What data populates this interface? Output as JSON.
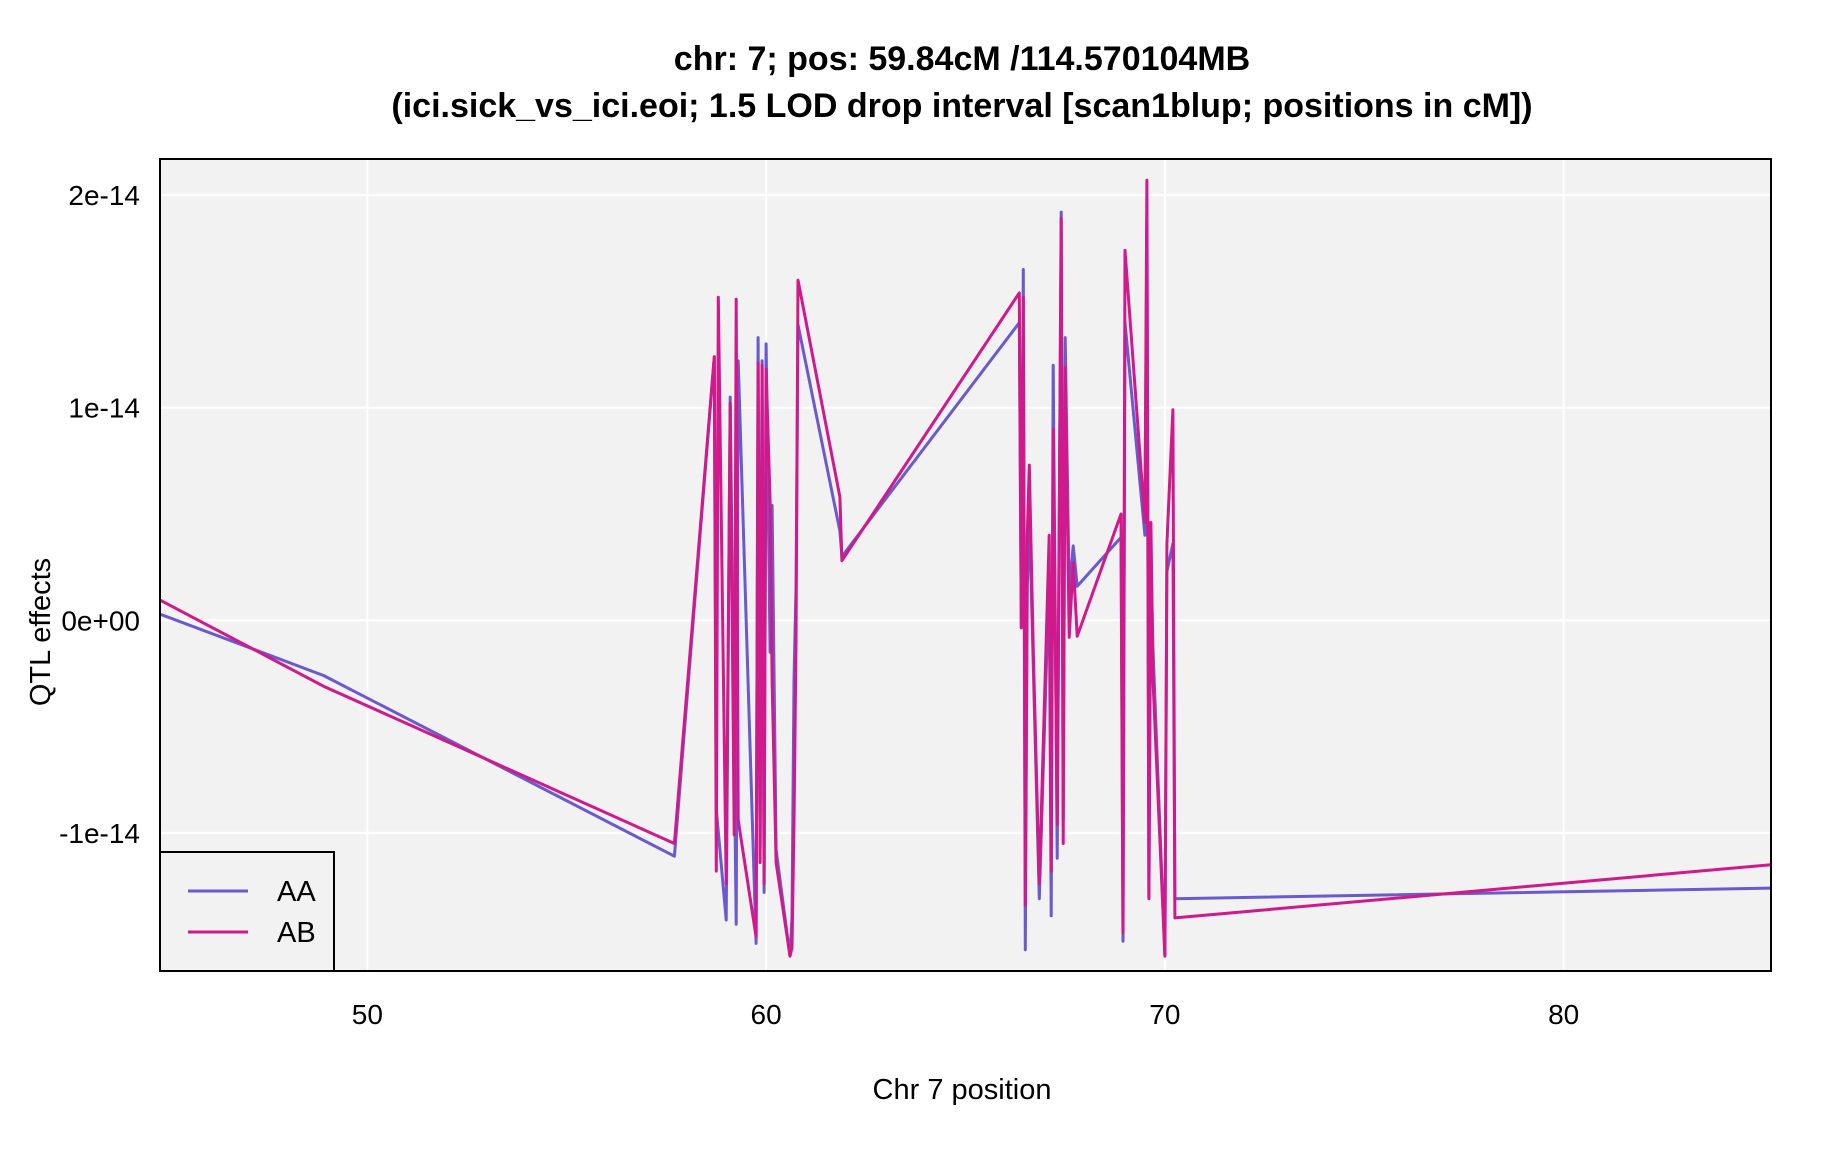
{
  "chart_data": {
    "type": "line",
    "title": "chr: 7; pos: 59.84cM /114.570104MB",
    "subtitle": "(ici.sick_vs_ici.eoi; 1.5 LOD drop interval [scan1blup; positions in cM])",
    "xlabel": "Chr 7 position",
    "ylabel": "QTL effects",
    "xlim": [
      44.8,
      85.2
    ],
    "ylim": [
      -1.65e-14,
      2.17e-14
    ],
    "x_ticks": [
      50,
      60,
      70,
      80
    ],
    "x_tick_labels": [
      "50",
      "60",
      "70",
      "80"
    ],
    "y_ticks": [
      -1e-14,
      0,
      1e-14,
      2e-14
    ],
    "y_tick_labels": [
      "-1e-14",
      "0e+00",
      "1e-14",
      "2e-14"
    ],
    "grid": true,
    "legend_position": "bottom-left",
    "background": "#f2f2f2",
    "series": [
      {
        "name": "AA",
        "color": "#6a5acd",
        "x": [
          44.8,
          48.9,
          57.7,
          58.7,
          58.75,
          59.0,
          59.1,
          59.25,
          59.3,
          59.75,
          59.8,
          59.85,
          59.9,
          59.95,
          60.0,
          60.1,
          60.15,
          60.25,
          60.6,
          60.65,
          60.7,
          60.75,
          60.8,
          61.85,
          61.9,
          66.35,
          66.4,
          66.45,
          66.5,
          66.55,
          66.6,
          66.7,
          66.85,
          67.1,
          67.15,
          67.2,
          67.3,
          67.4,
          67.45,
          67.5,
          67.6,
          67.7,
          67.8,
          68.9,
          68.95,
          69.0,
          69.5,
          69.55,
          69.6,
          69.65,
          69.7,
          70.0,
          70.05,
          70.2,
          70.25,
          85.2
        ],
        "values": [
          2.9e-16,
          -2.6e-15,
          -1.11e-14,
          1.24e-14,
          -8.9e-15,
          -1.41e-14,
          1.05e-14,
          -1.43e-14,
          1.22e-14,
          -1.52e-14,
          1.33e-14,
          -1.07e-14,
          1.22e-14,
          -1.28e-14,
          1.3e-14,
          -1.5e-15,
          5.4e-15,
          -1.08e-14,
          -1.58e-14,
          -1.4e-14,
          -2.8e-15,
          1.5e-15,
          1.39e-14,
          4.2e-15,
          3e-15,
          1.4e-14,
          -3.5e-16,
          1.65e-14,
          -1.55e-14,
          1.6e-15,
          5e-15,
          -2.2e-15,
          -1.31e-14,
          2.2e-15,
          -1.39e-14,
          1.2e-14,
          -1.12e-14,
          1.92e-14,
          -9.3e-15,
          1.33e-14,
          1.3e-15,
          3.5e-15,
          1.6e-15,
          3.9e-15,
          -1.51e-14,
          1.4e-14,
          4e-15,
          1.88e-14,
          -1.3e-14,
          3.4e-15,
          -1.25e-15,
          -1.58e-14,
          2.3e-15,
          3.6e-15,
          -1.31e-14,
          -1.26e-14
        ]
      },
      {
        "name": "AB",
        "color": "#d0198a",
        "x": [
          44.8,
          48.9,
          57.7,
          58.7,
          58.75,
          58.8,
          59.0,
          59.1,
          59.2,
          59.25,
          59.3,
          59.75,
          59.8,
          59.85,
          59.9,
          59.95,
          60.0,
          60.1,
          60.15,
          60.25,
          60.6,
          60.65,
          60.7,
          60.75,
          60.8,
          61.85,
          61.9,
          66.35,
          66.4,
          66.45,
          66.5,
          66.55,
          66.6,
          66.7,
          66.85,
          67.1,
          67.15,
          67.2,
          67.3,
          67.4,
          67.45,
          67.5,
          67.6,
          67.7,
          67.8,
          68.9,
          68.95,
          69.0,
          69.5,
          69.55,
          69.6,
          69.65,
          69.7,
          70.0,
          70.05,
          70.2,
          70.25,
          85.2
        ],
        "values": [
          9.5e-16,
          -3.1e-15,
          -1.05e-14,
          1.24e-14,
          -1.18e-14,
          1.52e-14,
          -1.24e-14,
          1.02e-14,
          -1.01e-14,
          1.51e-14,
          -9.4e-15,
          -1.49e-14,
          1.21e-14,
          -1.14e-14,
          1.2e-14,
          -1.24e-14,
          1.18e-14,
          5.6e-15,
          -2.8e-15,
          -1.14e-14,
          -1.58e-14,
          -1.54e-14,
          -9.5e-15,
          -1.1e-15,
          1.6e-14,
          5.8e-15,
          2.8e-15,
          1.54e-14,
          -3.5e-16,
          1.52e-14,
          -1.34e-14,
          4e-15,
          7.3e-15,
          -1.45e-15,
          -1.24e-14,
          4e-15,
          -1.18e-14,
          9e-15,
          -9.6e-15,
          1.89e-14,
          -1.05e-14,
          1.19e-14,
          -8e-16,
          2.7e-15,
          -7.5e-16,
          5e-15,
          -1.47e-14,
          1.74e-14,
          4.6e-15,
          2.07e-14,
          -1.31e-14,
          4.6e-15,
          -2.7e-15,
          -1.58e-14,
          3.6e-15,
          9.9e-15,
          -1.4e-14,
          -1.15e-14
        ]
      }
    ]
  }
}
